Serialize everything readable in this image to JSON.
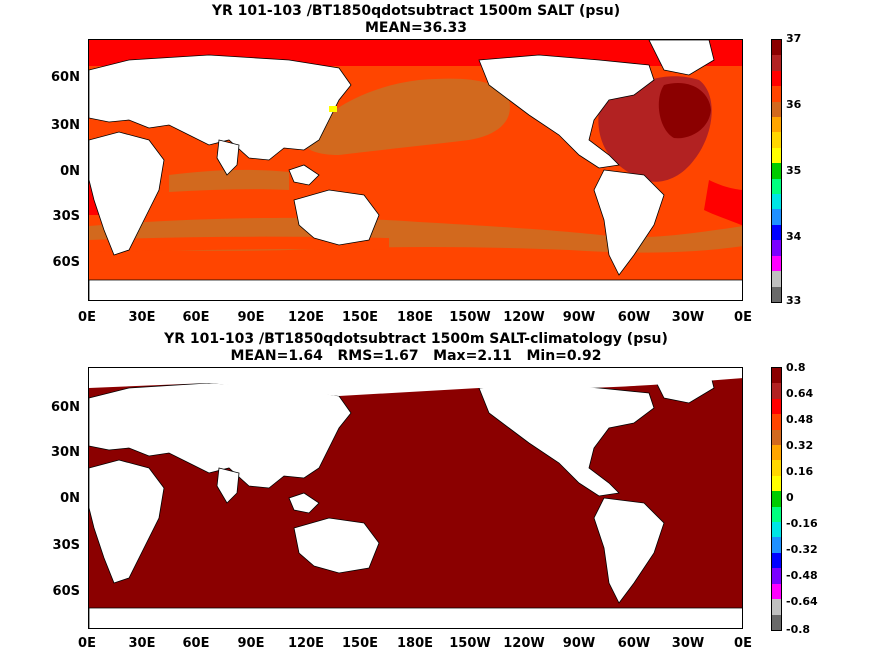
{
  "maps": [
    {
      "title1": "YR 101-103 /BT1850qdotsubtract 1500m SALT (psu)",
      "title2": "MEAN=36.33",
      "colorbar_labels": [
        "37",
        "36",
        "35",
        "34",
        "33"
      ],
      "colorbar_colors": [
        "#8b0000",
        "#b22222",
        "#ff0000",
        "#ff4500",
        "#d2691e",
        "#ffa500",
        "#ffd700",
        "#ffff00",
        "#00cc00",
        "#00ff7f",
        "#00e5e5",
        "#1e90ff",
        "#0000ff",
        "#7b00ff",
        "#ff00ff",
        "#c0c0c0",
        "#696969"
      ],
      "colors": {
        "land": "#ffffff",
        "fill_main": "#ff4500",
        "fill_subtropical": "#d2691e",
        "fill_north_atlantic": "#b22222",
        "fill_high_salinity": "#8b0000",
        "fill_high_latitude": "#ff0000",
        "fill_low": "#ffff00"
      }
    },
    {
      "title1": "YR 101-103 /BT1850qdotsubtract 1500m SALT-climatology (psu)",
      "title2": "MEAN=1.64   RMS=1.67   Max=2.11   Min=0.92",
      "colorbar_labels": [
        "0.8",
        "0.64",
        "0.48",
        "0.32",
        "0.16",
        "0",
        "-0.16",
        "-0.32",
        "-0.48",
        "-0.64",
        "-0.8"
      ],
      "colorbar_colors": [
        "#8b0000",
        "#b22222",
        "#ff0000",
        "#ff4500",
        "#d2691e",
        "#ffa500",
        "#ffd700",
        "#ffff00",
        "#00cc00",
        "#00ff7f",
        "#00e5e5",
        "#1e90ff",
        "#0000ff",
        "#7b00ff",
        "#ff00ff",
        "#c0c0c0",
        "#696969"
      ],
      "colors": {
        "land": "#ffffff",
        "fill_main": "#8b0000"
      }
    }
  ],
  "y_labels": [
    "60N",
    "30N",
    "0N",
    "30S",
    "60S"
  ],
  "x_labels": [
    "0E",
    "30E",
    "60E",
    "90E",
    "120E",
    "150E",
    "180E",
    "150W",
    "120W",
    "90W",
    "60W",
    "30W",
    "0E"
  ]
}
